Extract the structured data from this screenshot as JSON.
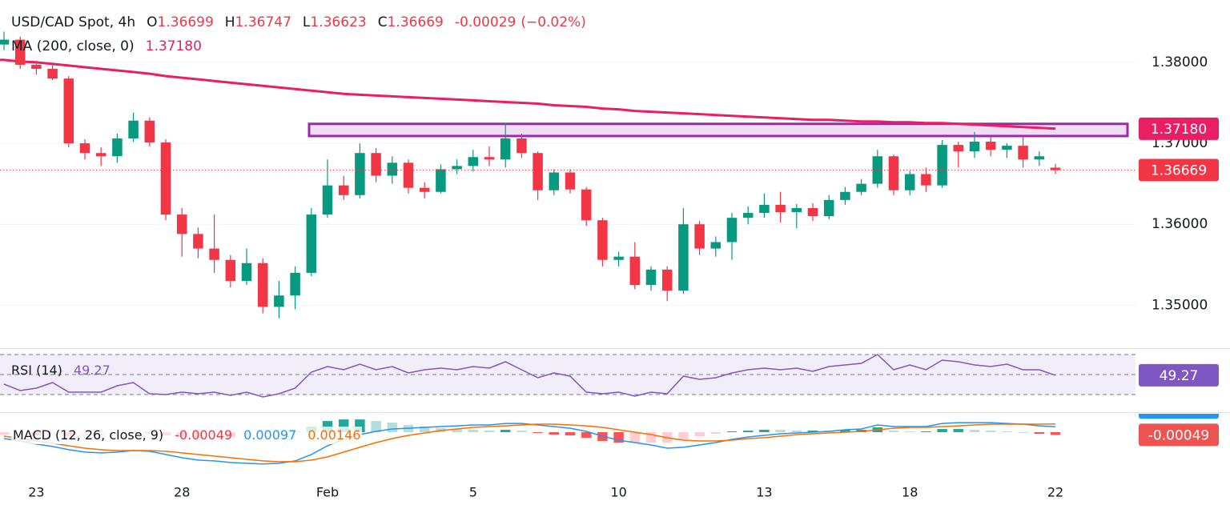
{
  "chart_data": {
    "type": "candlestick",
    "title": "USD/CAD Spot, 4h",
    "ohlc_labels": [
      "O",
      "H",
      "L",
      "C"
    ],
    "change": -0.00029,
    "change_label": "(−0.02%)",
    "categories": [
      null,
      null,
      "23",
      null,
      null,
      null,
      null,
      null,
      null,
      null,
      null,
      "28",
      null,
      null,
      null,
      null,
      null,
      null,
      null,
      null,
      "Feb",
      null,
      null,
      null,
      null,
      null,
      null,
      null,
      null,
      "5",
      null,
      null,
      null,
      null,
      null,
      null,
      null,
      null,
      "10",
      null,
      null,
      null,
      null,
      null,
      null,
      null,
      null,
      "13",
      null,
      null,
      null,
      null,
      null,
      null,
      null,
      null,
      "18",
      null,
      null,
      null,
      null,
      null,
      null,
      null,
      null,
      "22"
    ],
    "open": [
      1.3822,
      1.3828,
      1.3797,
      1.3792,
      1.378,
      1.37,
      1.3688,
      1.3684,
      1.3706,
      1.3728,
      1.3701,
      1.3612,
      1.3588,
      1.357,
      1.3556,
      1.353,
      1.3552,
      1.3498,
      1.3512,
      1.354,
      1.3612,
      1.3648,
      1.3636,
      1.3688,
      1.366,
      1.3676,
      1.3645,
      1.364,
      1.3668,
      1.3672,
      1.3683,
      1.368,
      1.3706,
      1.3688,
      1.3642,
      1.3664,
      1.3643,
      1.3605,
      1.3556,
      1.356,
      1.3525,
      1.3544,
      1.3518,
      1.36,
      1.357,
      1.3578,
      1.3608,
      1.3614,
      1.3624,
      1.3615,
      1.362,
      1.361,
      1.363,
      1.364,
      1.365,
      1.3684,
      1.3642,
      1.3662,
      1.3648,
      1.3698,
      1.369,
      1.3702,
      1.3692,
      1.3697,
      1.368,
      1.36699
    ],
    "high": [
      1.3838,
      1.3832,
      1.3802,
      1.3798,
      1.3783,
      1.3705,
      1.3695,
      1.3712,
      1.3738,
      1.3732,
      1.3705,
      1.362,
      1.3596,
      1.3612,
      1.3562,
      1.357,
      1.3558,
      1.353,
      1.3548,
      1.362,
      1.368,
      1.366,
      1.37,
      1.3694,
      1.3684,
      1.368,
      1.3652,
      1.3674,
      1.368,
      1.3692,
      1.3696,
      1.3725,
      1.3712,
      1.369,
      1.3668,
      1.3668,
      1.3646,
      1.3608,
      1.3566,
      1.3578,
      1.3548,
      1.3548,
      1.362,
      1.3604,
      1.3585,
      1.3614,
      1.3622,
      1.3638,
      1.364,
      1.3625,
      1.3626,
      1.3636,
      1.3646,
      1.3656,
      1.3692,
      1.3686,
      1.3666,
      1.367,
      1.3704,
      1.3702,
      1.3714,
      1.3708,
      1.37,
      1.3708,
      1.369,
      1.36747
    ],
    "low": [
      1.3815,
      1.3792,
      1.3785,
      1.3778,
      1.3695,
      1.368,
      1.3672,
      1.3676,
      1.3702,
      1.3696,
      1.3605,
      1.356,
      1.3558,
      1.354,
      1.3522,
      1.3525,
      1.349,
      1.3484,
      1.3495,
      1.3536,
      1.3608,
      1.363,
      1.3632,
      1.3652,
      1.365,
      1.3638,
      1.3632,
      1.3638,
      1.3662,
      1.3665,
      1.3672,
      1.367,
      1.3682,
      1.363,
      1.3636,
      1.3638,
      1.3598,
      1.3548,
      1.3548,
      1.352,
      1.3518,
      1.3505,
      1.3514,
      1.3562,
      1.356,
      1.3556,
      1.36,
      1.3608,
      1.3602,
      1.3595,
      1.3604,
      1.3606,
      1.3624,
      1.3636,
      1.3645,
      1.3636,
      1.3636,
      1.364,
      1.3645,
      1.367,
      1.3682,
      1.3684,
      1.3682,
      1.367,
      1.3672,
      1.36623
    ],
    "close": [
      1.3828,
      1.3797,
      1.3792,
      1.378,
      1.37,
      1.3688,
      1.3684,
      1.3706,
      1.3728,
      1.3701,
      1.3612,
      1.3588,
      1.357,
      1.3556,
      1.353,
      1.3552,
      1.3498,
      1.3512,
      1.354,
      1.3612,
      1.3648,
      1.3636,
      1.3688,
      1.366,
      1.3676,
      1.3645,
      1.364,
      1.3668,
      1.3672,
      1.3683,
      1.368,
      1.3706,
      1.3688,
      1.3642,
      1.3664,
      1.3643,
      1.3605,
      1.3556,
      1.356,
      1.3525,
      1.3544,
      1.3518,
      1.36,
      1.357,
      1.3578,
      1.3608,
      1.3614,
      1.3624,
      1.3615,
      1.362,
      1.361,
      1.363,
      1.364,
      1.365,
      1.3684,
      1.3642,
      1.3662,
      1.3648,
      1.3698,
      1.369,
      1.3702,
      1.3692,
      1.3697,
      1.368,
      1.3684,
      1.36669
    ],
    "up_color": "#089981",
    "down_color": "#f23645",
    "ylim": [
      1.3447,
      1.3877
    ],
    "yticks": [
      {
        "value": 1.35,
        "label": "1.35000"
      },
      {
        "value": 1.36,
        "label": "1.36000"
      },
      {
        "value": 1.37,
        "label": "1.37000"
      },
      {
        "value": 1.38,
        "label": "1.38000"
      }
    ],
    "grid": true,
    "ma": {
      "name": "MA (200, close, 0)",
      "color": "#e91e63",
      "last_value_label": "1.37180",
      "values": [
        1.3803,
        1.3801,
        1.38,
        1.3798,
        1.3796,
        1.3794,
        1.3792,
        1.379,
        1.3788,
        1.3786,
        1.3783,
        1.3781,
        1.3779,
        1.3777,
        1.3775,
        1.3773,
        1.3771,
        1.3769,
        1.3767,
        1.3765,
        1.3763,
        1.3761,
        1.376,
        1.3759,
        1.3758,
        1.3757,
        1.3756,
        1.3755,
        1.3754,
        1.3753,
        1.3752,
        1.3751,
        1.375,
        1.3749,
        1.3747,
        1.3746,
        1.3745,
        1.3743,
        1.3742,
        1.374,
        1.3739,
        1.3738,
        1.3737,
        1.3736,
        1.3735,
        1.3734,
        1.3733,
        1.3732,
        1.3731,
        1.373,
        1.3729,
        1.3729,
        1.3728,
        1.3727,
        1.3727,
        1.3726,
        1.3726,
        1.3725,
        1.3725,
        1.3724,
        1.3723,
        1.3722,
        1.3721,
        1.372,
        1.3719,
        1.3718
      ]
    },
    "zone": {
      "top": 1.3724,
      "bottom": 1.3709,
      "color": "#9c27b0"
    },
    "rsi": {
      "type": "line",
      "name": "RSI (14)",
      "color": "#7e57c2",
      "ylim": [
        12.4,
        74.8
      ],
      "levels": [
        30,
        50,
        70
      ],
      "values": [
        40.4,
        34,
        36.4,
        42,
        32.4,
        32.4,
        32.4,
        38.8,
        42,
        30.8,
        30,
        32.4,
        30.8,
        32.4,
        29.2,
        32.4,
        27.6,
        30.8,
        36.4,
        52.4,
        58,
        54.8,
        60.4,
        54.8,
        58,
        51.6,
        54.8,
        56.4,
        54.8,
        58,
        56.4,
        62.8,
        54.8,
        46.8,
        51.6,
        48.4,
        32.4,
        30.8,
        32.4,
        28.4,
        32.4,
        30.8,
        48.4,
        45.2,
        46.8,
        51.6,
        54.8,
        56.4,
        54.8,
        56.4,
        53.2,
        58,
        59.6,
        61.2,
        70,
        54.8,
        59.6,
        54.8,
        64.4,
        62.8,
        59.6,
        58,
        60.4,
        54.8,
        54.8,
        49.27
      ]
    },
    "macd": {
      "type": "line",
      "name": "MACD (12, 26, close, 9)",
      "ylim": [
        -0.0086,
        0.0033
      ],
      "histogram": {
        "values": [
          -0.00043,
          -0.00043,
          -0.00057,
          -0.00057,
          -0.00071,
          -0.00071,
          -0.00057,
          -0.00028,
          0,
          -0.00014,
          -0.00057,
          -0.00086,
          -0.001,
          -0.00085,
          -0.00086,
          -0.00071,
          -0.00057,
          -0.00028,
          0.00015,
          0.001,
          0.002,
          0.00228,
          0.00228,
          0.002,
          0.00171,
          0.00128,
          0.001,
          0.00071,
          0.00057,
          0.00043,
          0.00029,
          0.00043,
          0.00028,
          -0.00014,
          -0.00043,
          -0.00058,
          -0.001,
          -0.00157,
          -0.00186,
          -0.00186,
          -0.00186,
          -0.00186,
          -0.00128,
          -0.00072,
          -0.00029,
          0.00014,
          0.00028,
          0.00043,
          0.00042,
          0.00029,
          0.00029,
          0.00028,
          0.00043,
          0.00043,
          0.00086,
          0.00029,
          0.00014,
          0.00014,
          0.00057,
          0.00057,
          0.00042,
          0.00028,
          0.00014,
          0,
          -0.00029,
          -0.00049
        ]
      },
      "series": [
        {
          "color": "#2196f3",
          "values": [
            -0.00114,
            -0.00157,
            -0.00214,
            -0.00257,
            -0.00314,
            -0.00357,
            -0.00371,
            -0.00357,
            -0.00329,
            -0.00343,
            -0.004,
            -0.00457,
            -0.005,
            -0.00514,
            -0.00543,
            -0.00557,
            -0.00571,
            -0.00557,
            -0.00514,
            -0.004,
            -0.00243,
            -0.00129,
            -0.00043,
            0.00014,
            0.00057,
            0.00071,
            0.00086,
            0.001,
            0.00114,
            0.00129,
            0.00129,
            0.00157,
            0.00157,
            0.00129,
            0.001,
            0.00071,
            0.00014,
            -0.00071,
            -0.00143,
            -0.00186,
            -0.00229,
            -0.00286,
            -0.00271,
            -0.00229,
            -0.00186,
            -0.00129,
            -0.00086,
            -0.00057,
            -0.00029,
            -0.00014,
            0,
            0.00014,
            0.00043,
            0.00057,
            0.00129,
            0.001,
            0.001,
            0.001,
            0.00157,
            0.00171,
            0.00171,
            0.00171,
            0.00157,
            0.00143,
            0.00114,
            0.00097
          ]
        },
        {
          "color": "#ff6d00",
          "values": [
            -0.00071,
            -0.00114,
            -0.00157,
            -0.002,
            -0.00243,
            -0.00286,
            -0.00314,
            -0.00329,
            -0.00329,
            -0.00329,
            -0.00343,
            -0.00371,
            -0.004,
            -0.00429,
            -0.00457,
            -0.00486,
            -0.00514,
            -0.00529,
            -0.00529,
            -0.005,
            -0.00443,
            -0.00357,
            -0.00271,
            -0.00186,
            -0.00114,
            -0.00057,
            -0.00014,
            0.00029,
            0.00057,
            0.00086,
            0.001,
            0.00114,
            0.00129,
            0.00143,
            0.00143,
            0.00129,
            0.00114,
            0.00086,
            0.00043,
            0,
            -0.00043,
            -0.001,
            -0.00143,
            -0.00157,
            -0.00157,
            -0.00143,
            -0.00114,
            -0.001,
            -0.00071,
            -0.00043,
            -0.00029,
            -0.00014,
            0,
            0.00014,
            0.00043,
            0.00071,
            0.00086,
            0.00086,
            0.001,
            0.00114,
            0.00129,
            0.00143,
            0.00143,
            0.00143,
            0.00143,
            0.00146
          ]
        }
      ]
    }
  }
}
